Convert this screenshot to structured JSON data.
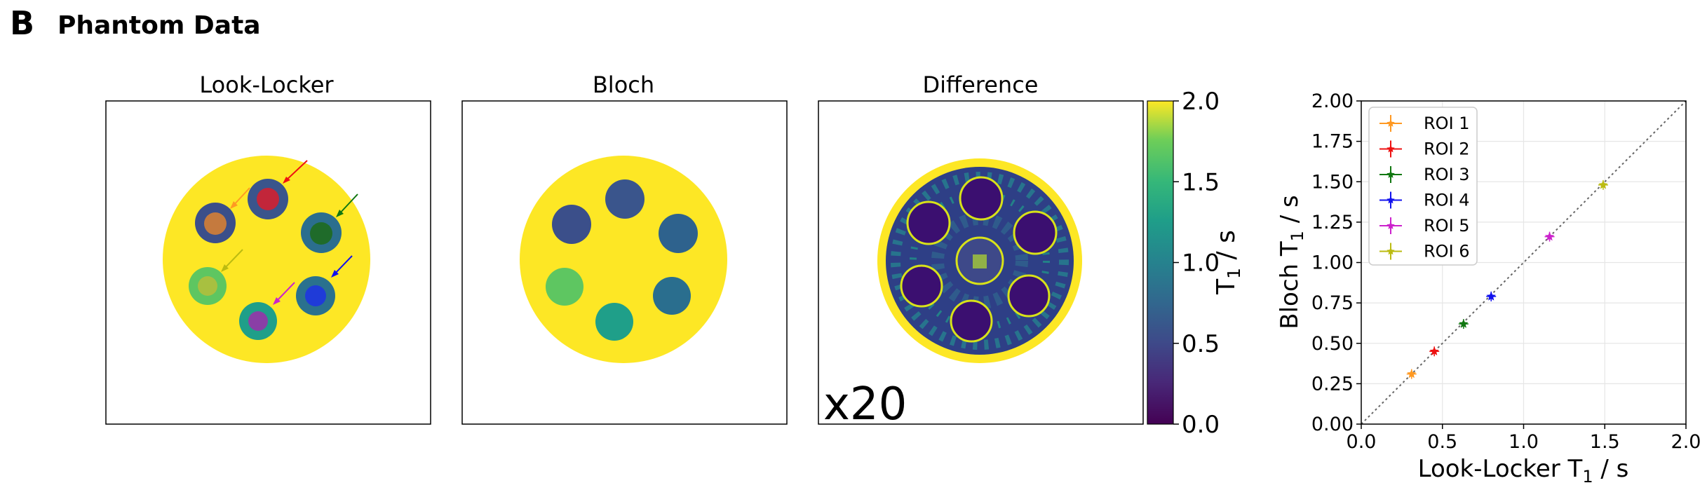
{
  "figure": {
    "panel_letter": "B",
    "panel_title": "Phantom Data"
  },
  "images": [
    {
      "title": "Look-Locker"
    },
    {
      "title": "Bloch"
    },
    {
      "title": "Difference",
      "annotation": "x20"
    }
  ],
  "colorbar": {
    "label_main": "T",
    "label_sub": "1",
    "label_tail": " / s",
    "ticks": [
      "0.0",
      "0.5",
      "1.0",
      "1.5",
      "2.0"
    ],
    "range": [
      0.0,
      2.0
    ],
    "colormap": "viridis"
  },
  "roi_colors": {
    "ROI 1": "#ff9922",
    "ROI 2": "#ee1111",
    "ROI 3": "#117711",
    "ROI 4": "#1111ee",
    "ROI 5": "#cc22cc",
    "ROI 6": "#bbbb11"
  },
  "chart_data": {
    "type": "scatter",
    "xlabel_main": "Look-Locker T",
    "xlabel_sub": "1",
    "xlabel_tail": " / s",
    "ylabel_main": "Bloch T",
    "ylabel_sub": "1",
    "ylabel_tail": " / s",
    "xlim": [
      0.0,
      2.0
    ],
    "ylim": [
      0.0,
      2.0
    ],
    "xticks": [
      "0.0",
      "0.5",
      "1.0",
      "1.5",
      "2.0"
    ],
    "yticks": [
      "0.00",
      "0.25",
      "0.50",
      "0.75",
      "1.00",
      "1.25",
      "1.50",
      "1.75",
      "2.00"
    ],
    "grid": true,
    "legend_position": "top-left",
    "identity_line": true,
    "series": [
      {
        "name": "ROI 1",
        "x": 0.31,
        "y": 0.31,
        "color": "#ff9922"
      },
      {
        "name": "ROI 2",
        "x": 0.45,
        "y": 0.45,
        "color": "#ee1111"
      },
      {
        "name": "ROI 3",
        "x": 0.63,
        "y": 0.62,
        "color": "#117711"
      },
      {
        "name": "ROI 4",
        "x": 0.8,
        "y": 0.79,
        "color": "#1111ee"
      },
      {
        "name": "ROI 5",
        "x": 1.16,
        "y": 1.16,
        "color": "#cc22cc"
      },
      {
        "name": "ROI 6",
        "x": 1.49,
        "y": 1.48,
        "color": "#bbbb11"
      }
    ]
  }
}
